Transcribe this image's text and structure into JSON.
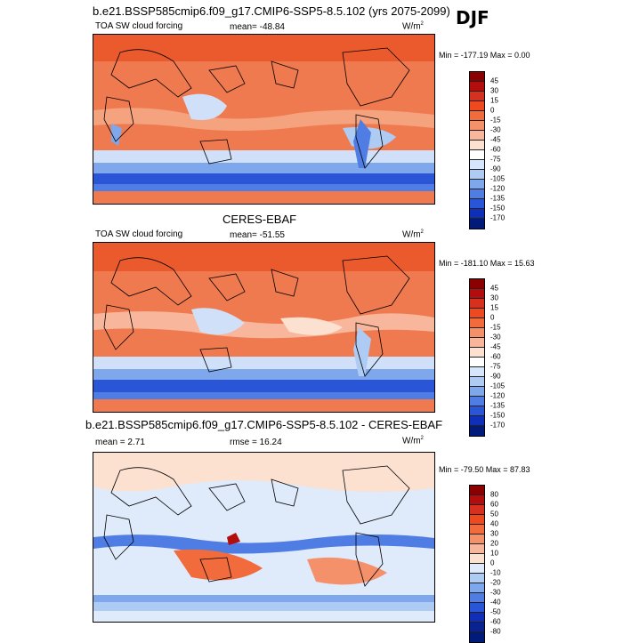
{
  "season": "DJF",
  "panels": [
    {
      "title": "b.e21.BSSP585cmip6.f09_g17.CMIP6-SSP5-8.5.102 (yrs 2075-2099)",
      "variable": "TOA SW cloud forcing",
      "stat": "mean= -48.84",
      "units": "W/m",
      "units_sup": "2",
      "minmax": "Min = -177.19 Max =   0.00"
    },
    {
      "title": "CERES-EBAF",
      "variable": "TOA SW cloud forcing",
      "stat": "mean= -51.55",
      "units": "W/m",
      "units_sup": "2",
      "minmax": "Min = -181.10 Max =  15.63"
    },
    {
      "title": "b.e21.BSSP585cmip6.f09_g17.CMIP6-SSP5-8.5.102 - CERES-EBAF",
      "variable": "mean =   2.71",
      "stat": "rmse =  16.24",
      "units": "W/m",
      "units_sup": "2",
      "minmax": "Min = -79.50 Max =  87.83"
    }
  ],
  "colorbar_main": {
    "labels": [
      "45",
      "30",
      "15",
      "0",
      "-15",
      "-30",
      "-45",
      "-60",
      "-75",
      "-90",
      "-105",
      "-120",
      "-135",
      "-150",
      "-170"
    ],
    "colors": [
      "#8b0000",
      "#b30d0d",
      "#d7301f",
      "#ef4a1f",
      "#f26b3c",
      "#f5916a",
      "#f8b79c",
      "#fce0d0",
      "#ffffff",
      "#d6e6fb",
      "#aecbf4",
      "#7fa8ec",
      "#4f7de3",
      "#2a55d6",
      "#0f2fb8",
      "#021a7a"
    ]
  },
  "colorbar_diff": {
    "labels": [
      "80",
      "60",
      "50",
      "40",
      "30",
      "20",
      "10",
      "0",
      "-10",
      "-20",
      "-30",
      "-40",
      "-50",
      "-60",
      "-80"
    ],
    "colors": [
      "#8b0000",
      "#b30d0d",
      "#d7301f",
      "#ef4a1f",
      "#f26b3c",
      "#f5916a",
      "#f8b79c",
      "#fce0d0",
      "#dfeafb",
      "#aecbf4",
      "#7fa8ec",
      "#4f7de3",
      "#2a55d6",
      "#0f2fb8",
      "#0a2190",
      "#021a7a"
    ]
  }
}
